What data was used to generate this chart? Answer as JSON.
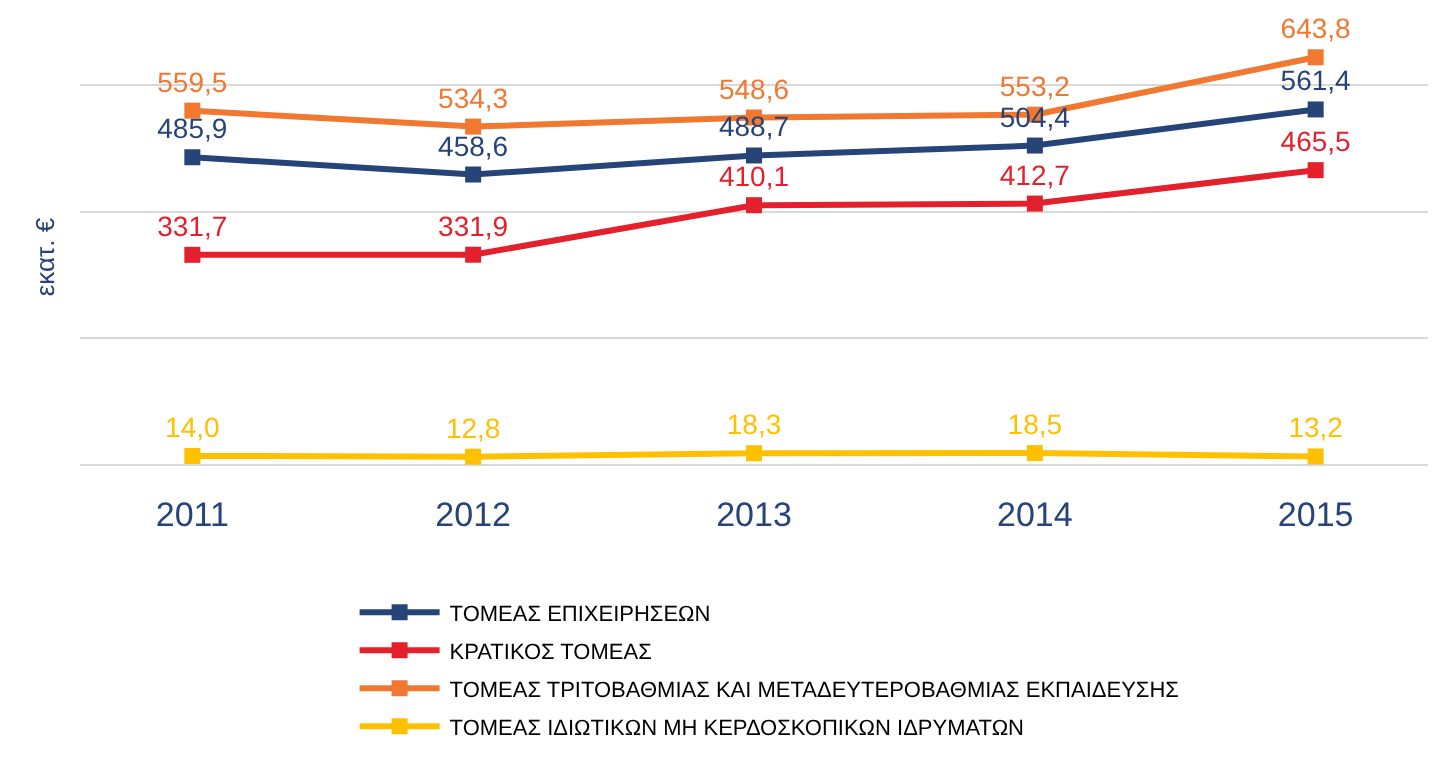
{
  "chart_data": {
    "type": "line",
    "ylabel": "εκατ. €",
    "categories": [
      "2011",
      "2012",
      "2013",
      "2014",
      "2015"
    ],
    "series": [
      {
        "name": "ΤΟΜΕΑΣ ΕΠΙΧΕΙΡΗΣΕΩΝ",
        "color": "#264478",
        "values": [
          485.9,
          458.6,
          488.7,
          504.4,
          561.4
        ],
        "value_labels": [
          "485,9",
          "458,6",
          "488,7",
          "504,4",
          "561,4"
        ]
      },
      {
        "name": "ΚΡΑΤΙΚΟΣ ΤΟΜΕΑΣ",
        "color": "#e3202b",
        "values": [
          331.7,
          331.9,
          410.1,
          412.7,
          465.5
        ],
        "value_labels": [
          "331,7",
          "331,9",
          "410,1",
          "412,7",
          "465,5"
        ]
      },
      {
        "name": "ΤΟΜΕΑΣ ΤΡΙΤΟΒΑΘΜΙΑΣ ΚΑΙ ΜΕΤΑΔΕΥΤΕΡΟΒΑΘΜΙΑΣ ΕΚΠΑΙΔΕΥΣΗΣ",
        "color": "#f07830",
        "values": [
          559.5,
          534.3,
          548.6,
          553.2,
          643.8
        ],
        "value_labels": [
          "559,5",
          "534,3",
          "548,6",
          "553,2",
          "643,8"
        ]
      },
      {
        "name": "ΤΟΜΕΑΣ ΙΔΙΩΤΙΚΩΝ ΜΗ ΚΕΡΔΟΣΚΟΠΙΚΩΝ ΙΔΡΥΜΑΤΩΝ",
        "color": "#ffc000",
        "values": [
          14.0,
          12.8,
          18.3,
          18.5,
          13.2
        ],
        "value_labels": [
          "14,0",
          "12,8",
          "18,3",
          "18,5",
          "13,2"
        ]
      }
    ],
    "grid": "y",
    "legend": "bottom",
    "tick_labels": "x",
    "marker": "square",
    "line_style": "solid"
  }
}
